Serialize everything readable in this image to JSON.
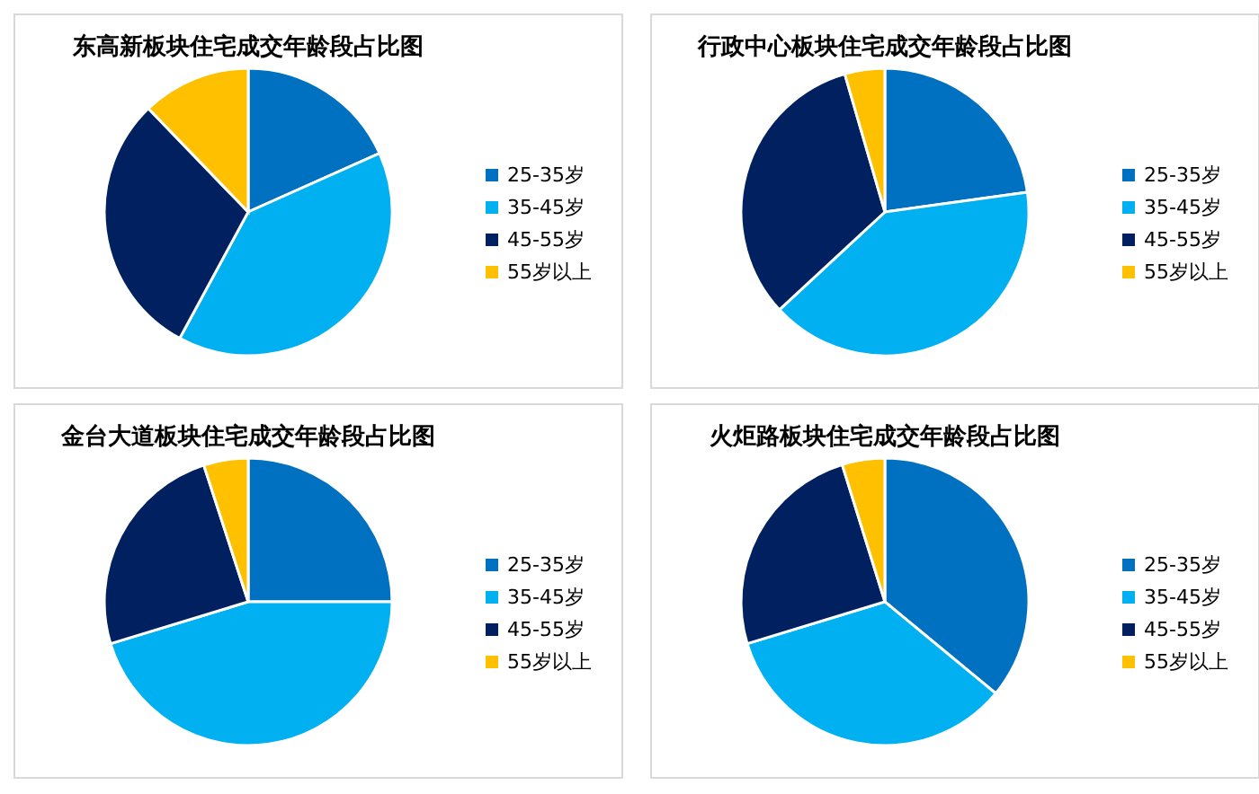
{
  "chart_data": [
    {
      "type": "pie",
      "title": "东高新板块住宅成交年龄段占比图",
      "categories": [
        "25-35岁",
        "35-45岁",
        "45-55岁",
        "55岁以上"
      ],
      "values": [
        18.3,
        39.6,
        29.9,
        12.2
      ],
      "colors": [
        "#0070c0",
        "#00b0f0",
        "#002060",
        "#ffc000"
      ],
      "legend": "right"
    },
    {
      "type": "pie",
      "title": "行政中心板块住宅成交年龄段占比图",
      "categories": [
        "25-35岁",
        "35-45岁",
        "45-55岁",
        "55岁以上"
      ],
      "values": [
        22.8,
        40.3,
        32.4,
        4.5
      ],
      "colors": [
        "#0070c0",
        "#00b0f0",
        "#002060",
        "#ffc000"
      ],
      "legend": "right"
    },
    {
      "type": "pie",
      "title": "金台大道板块住宅成交年龄段占比图",
      "categories": [
        "25-35岁",
        "35-45岁",
        "45-55岁",
        "55岁以上"
      ],
      "values": [
        25,
        45.3,
        24.7,
        5
      ],
      "colors": [
        "#0070c0",
        "#00b0f0",
        "#002060",
        "#ffc000"
      ],
      "legend": "right"
    },
    {
      "type": "pie",
      "title": "火炬路板块住宅成交年龄段占比图",
      "categories": [
        "25-35岁",
        "35-45岁",
        "45-55岁",
        "55岁以上"
      ],
      "values": [
        36,
        34.3,
        24.9,
        4.8
      ],
      "colors": [
        "#0070c0",
        "#00b0f0",
        "#002060",
        "#ffc000"
      ],
      "legend": "right"
    }
  ]
}
